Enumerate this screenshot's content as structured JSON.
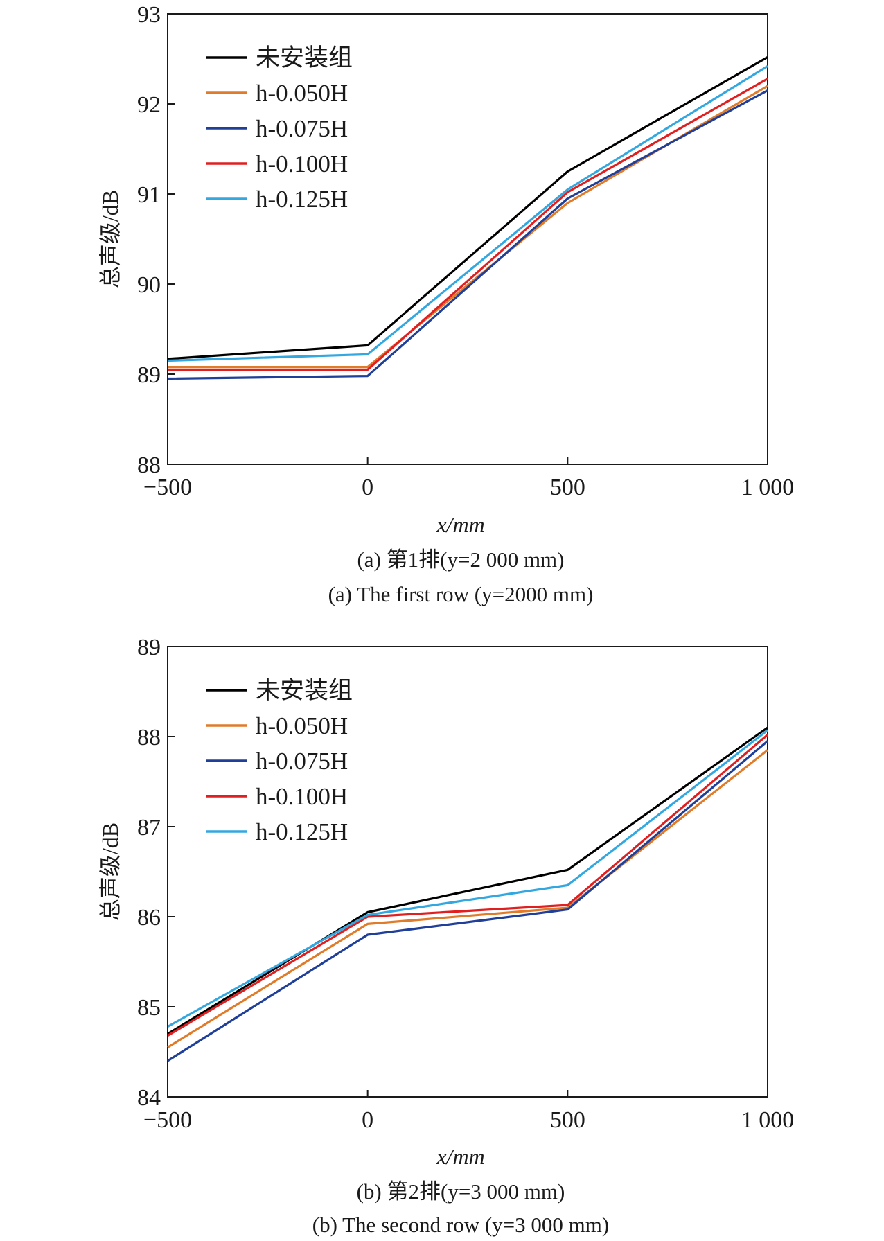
{
  "chart_data": [
    {
      "type": "line",
      "ylabel": "总声级/dB",
      "xlabel": "x/mm",
      "x": [
        -500,
        0,
        500,
        1000
      ],
      "x_tick_labels": [
        "−500",
        "0",
        "500",
        "1 000"
      ],
      "y_tick_labels": [
        "88",
        "89",
        "90",
        "91",
        "92",
        "93"
      ],
      "ylim": [
        88,
        93
      ],
      "xlim": [
        -500,
        1000
      ],
      "caption_cn": "(a) 第1排(y=2 000 mm)",
      "caption_en": "(a) The first row (y=2000 mm)",
      "legend_position": "top-left",
      "series": [
        {
          "name": "未安装组",
          "color": "#000000",
          "values": [
            89.17,
            89.32,
            91.25,
            92.52
          ]
        },
        {
          "name": "h-0.050H",
          "color": "#e07b2a",
          "values": [
            89.08,
            89.08,
            90.9,
            92.2
          ]
        },
        {
          "name": "h-0.075H",
          "color": "#1f3f99",
          "values": [
            88.95,
            88.98,
            90.95,
            92.15
          ]
        },
        {
          "name": "h-0.100H",
          "color": "#e02020",
          "values": [
            89.05,
            89.05,
            91.02,
            92.28
          ]
        },
        {
          "name": "h-0.125H",
          "color": "#33a8e0",
          "values": [
            89.15,
            89.22,
            91.05,
            92.42
          ]
        }
      ]
    },
    {
      "type": "line",
      "ylabel": "总声级/dB",
      "xlabel": "x/mm",
      "x": [
        -500,
        0,
        500,
        1000
      ],
      "x_tick_labels": [
        "−500",
        "0",
        "500",
        "1 000"
      ],
      "y_tick_labels": [
        "84",
        "85",
        "86",
        "87",
        "88",
        "89"
      ],
      "ylim": [
        84,
        89
      ],
      "xlim": [
        -500,
        1000
      ],
      "caption_cn": "(b) 第2排(y=3 000 mm)",
      "caption_en": "(b) The second row (y=3 000 mm)",
      "legend_position": "top-left",
      "series": [
        {
          "name": "未安装组",
          "color": "#000000",
          "values": [
            84.7,
            86.05,
            86.52,
            88.1
          ]
        },
        {
          "name": "h-0.050H",
          "color": "#e07b2a",
          "values": [
            84.55,
            85.92,
            86.1,
            87.85
          ]
        },
        {
          "name": "h-0.075H",
          "color": "#1f3f99",
          "values": [
            84.4,
            85.8,
            86.08,
            87.95
          ]
        },
        {
          "name": "h-0.100H",
          "color": "#e02020",
          "values": [
            84.68,
            86.0,
            86.13,
            88.02
          ]
        },
        {
          "name": "h-0.125H",
          "color": "#33a8e0",
          "values": [
            84.78,
            86.02,
            86.35,
            88.07
          ]
        }
      ]
    }
  ]
}
